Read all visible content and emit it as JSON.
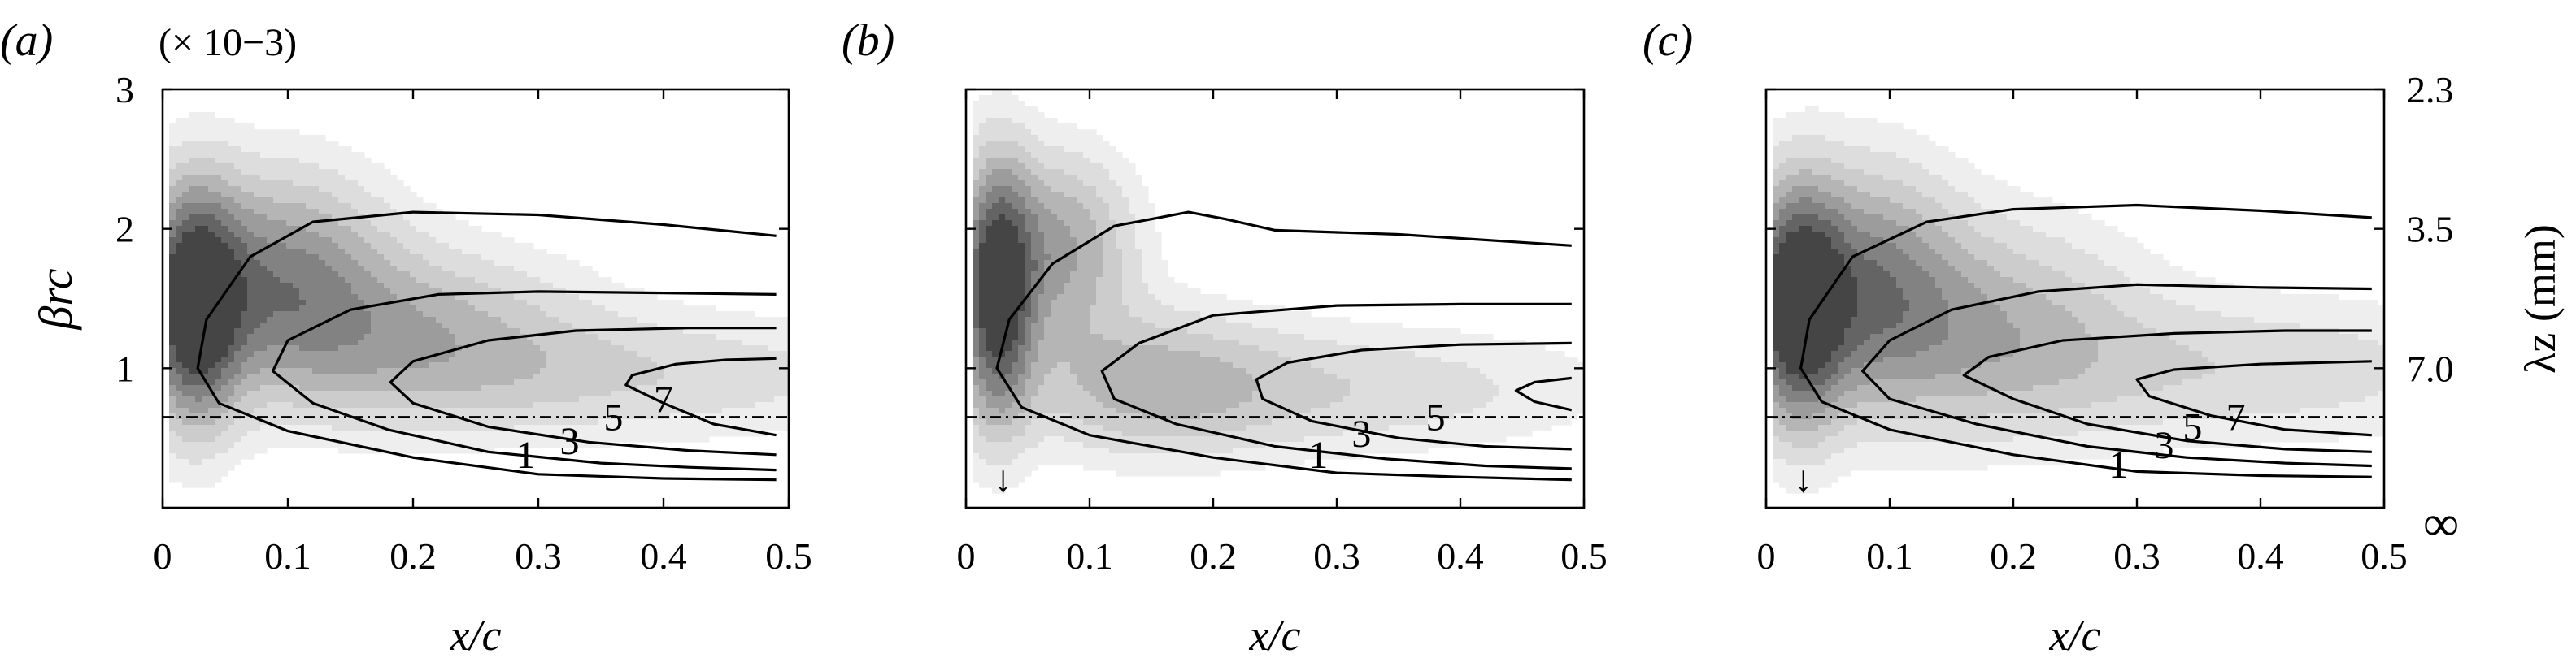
{
  "figure": {
    "scale_note": "(× 10−3)",
    "shared_xlabel": "x/c",
    "shared_ylabel": "βrc",
    "right_axis_label": "λz (mm)"
  },
  "chart_data": [
    {
      "type": "heatmap",
      "panel_label": "(a)",
      "xlabel": "x/c",
      "ylabel": "βrc",
      "xlim": [
        0,
        0.5
      ],
      "ylim": [
        0,
        3
      ],
      "xticks": [
        "0",
        "0.1",
        "0.2",
        "0.3",
        "0.4",
        "0.5"
      ],
      "yticks": [
        "3",
        "2",
        "1"
      ],
      "scale_note": "(× 10−3)",
      "reference_line_y": 0.65,
      "arrow": false,
      "blobs": [
        {
          "x": 0.025,
          "y": 1.45,
          "sx": 0.025,
          "sy": 0.55,
          "amp": 0.95
        },
        {
          "x": 0.09,
          "y": 1.65,
          "sx": 0.06,
          "sy": 0.5,
          "amp": 0.55
        },
        {
          "x": 0.2,
          "y": 1.25,
          "sx": 0.09,
          "sy": 0.4,
          "amp": 0.35
        },
        {
          "x": 0.38,
          "y": 0.95,
          "sx": 0.15,
          "sy": 0.3,
          "amp": 0.2
        }
      ],
      "contours": [
        {
          "level": "1",
          "label_at": [
            0.29,
            0.35
          ],
          "points": [
            [
              0.49,
              0.2
            ],
            [
              0.4,
              0.21
            ],
            [
              0.3,
              0.24
            ],
            [
              0.2,
              0.36
            ],
            [
              0.1,
              0.55
            ],
            [
              0.045,
              0.75
            ],
            [
              0.028,
              1
            ],
            [
              0.035,
              1.35
            ],
            [
              0.07,
              1.8
            ],
            [
              0.12,
              2.05
            ],
            [
              0.2,
              2.12
            ],
            [
              0.3,
              2.1
            ],
            [
              0.4,
              2.03
            ],
            [
              0.49,
              1.95
            ]
          ]
        },
        {
          "level": "3",
          "label_at": [
            0.325,
            0.45
          ],
          "points": [
            [
              0.49,
              0.27
            ],
            [
              0.42,
              0.29
            ],
            [
              0.35,
              0.32
            ],
            [
              0.26,
              0.4
            ],
            [
              0.18,
              0.56
            ],
            [
              0.12,
              0.75
            ],
            [
              0.088,
              0.98
            ],
            [
              0.1,
              1.2
            ],
            [
              0.15,
              1.42
            ],
            [
              0.22,
              1.53
            ],
            [
              0.3,
              1.55
            ],
            [
              0.4,
              1.54
            ],
            [
              0.49,
              1.53
            ]
          ]
        },
        {
          "level": "5",
          "label_at": [
            0.36,
            0.62
          ],
          "points": [
            [
              0.49,
              0.38
            ],
            [
              0.42,
              0.41
            ],
            [
              0.34,
              0.47
            ],
            [
              0.26,
              0.58
            ],
            [
              0.2,
              0.75
            ],
            [
              0.182,
              0.9
            ],
            [
              0.2,
              1.05
            ],
            [
              0.26,
              1.2
            ],
            [
              0.33,
              1.27
            ],
            [
              0.42,
              1.29
            ],
            [
              0.49,
              1.29
            ]
          ]
        },
        {
          "level": "7",
          "label_at": [
            0.4,
            0.75
          ],
          "points": [
            [
              0.49,
              0.52
            ],
            [
              0.44,
              0.6
            ],
            [
              0.4,
              0.75
            ],
            [
              0.37,
              0.88
            ],
            [
              0.375,
              0.95
            ],
            [
              0.41,
              1.03
            ],
            [
              0.45,
              1.06
            ],
            [
              0.49,
              1.07
            ]
          ]
        }
      ]
    },
    {
      "type": "heatmap",
      "panel_label": "(b)",
      "xlabel": "x/c",
      "ylabel": "",
      "xlim": [
        0,
        0.5
      ],
      "ylim": [
        0,
        3
      ],
      "xticks": [
        "0",
        "0.1",
        "0.2",
        "0.3",
        "0.4",
        "0.5"
      ],
      "yticks": [],
      "scale_note": "",
      "reference_line_y": 0.65,
      "arrow": true,
      "arrow_symbol": "↓",
      "arrow_x": 0.03,
      "blobs": [
        {
          "x": 0.025,
          "y": 1.55,
          "sx": 0.02,
          "sy": 0.6,
          "amp": 0.95
        },
        {
          "x": 0.075,
          "y": 1.85,
          "sx": 0.04,
          "sy": 0.45,
          "amp": 0.45
        },
        {
          "x": 0.15,
          "y": 0.9,
          "sx": 0.07,
          "sy": 0.35,
          "amp": 0.3
        },
        {
          "x": 0.3,
          "y": 0.85,
          "sx": 0.14,
          "sy": 0.3,
          "amp": 0.2
        }
      ],
      "contours": [
        {
          "level": "1",
          "label_at": [
            0.285,
            0.35
          ],
          "points": [
            [
              0.49,
              0.2
            ],
            [
              0.4,
              0.22
            ],
            [
              0.3,
              0.25
            ],
            [
              0.2,
              0.36
            ],
            [
              0.1,
              0.52
            ],
            [
              0.045,
              0.72
            ],
            [
              0.025,
              1
            ],
            [
              0.035,
              1.35
            ],
            [
              0.07,
              1.75
            ],
            [
              0.12,
              2.02
            ],
            [
              0.18,
              2.12
            ],
            [
              0.21,
              2.07
            ],
            [
              0.25,
              1.99
            ],
            [
              0.35,
              1.96
            ],
            [
              0.49,
              1.88
            ]
          ]
        },
        {
          "level": "3",
          "label_at": [
            0.32,
            0.5
          ],
          "points": [
            [
              0.49,
              0.28
            ],
            [
              0.42,
              0.3
            ],
            [
              0.34,
              0.35
            ],
            [
              0.25,
              0.44
            ],
            [
              0.17,
              0.6
            ],
            [
              0.12,
              0.78
            ],
            [
              0.11,
              0.98
            ],
            [
              0.14,
              1.18
            ],
            [
              0.2,
              1.38
            ],
            [
              0.3,
              1.45
            ],
            [
              0.4,
              1.46
            ],
            [
              0.49,
              1.46
            ]
          ]
        },
        {
          "level": "5",
          "label_at": [
            0.38,
            0.62
          ],
          "points": [
            [
              0.49,
              0.42
            ],
            [
              0.42,
              0.44
            ],
            [
              0.35,
              0.5
            ],
            [
              0.28,
              0.62
            ],
            [
              0.24,
              0.78
            ],
            [
              0.235,
              0.92
            ],
            [
              0.26,
              1.04
            ],
            [
              0.32,
              1.13
            ],
            [
              0.4,
              1.17
            ],
            [
              0.49,
              1.18
            ]
          ]
        },
        {
          "level": "",
          "label_at": null,
          "points": [
            [
              0.49,
              0.7
            ],
            [
              0.46,
              0.76
            ],
            [
              0.445,
              0.84
            ],
            [
              0.46,
              0.9
            ],
            [
              0.49,
              0.93
            ]
          ]
        }
      ]
    },
    {
      "type": "heatmap",
      "panel_label": "(c)",
      "xlabel": "x/c",
      "ylabel": "",
      "xlim": [
        0,
        0.5
      ],
      "ylim": [
        0,
        3
      ],
      "xticks": [
        "0",
        "0.1",
        "0.2",
        "0.3",
        "0.4",
        "0.5"
      ],
      "yticks": [],
      "scale_note": "",
      "reference_line_y": 0.65,
      "arrow": true,
      "arrow_symbol": "↓",
      "arrow_x": 0.03,
      "blobs": [
        {
          "x": 0.025,
          "y": 1.45,
          "sx": 0.025,
          "sy": 0.55,
          "amp": 0.95
        },
        {
          "x": 0.08,
          "y": 1.6,
          "sx": 0.05,
          "sy": 0.55,
          "amp": 0.55
        },
        {
          "x": 0.18,
          "y": 1.3,
          "sx": 0.08,
          "sy": 0.5,
          "amp": 0.35
        },
        {
          "x": 0.38,
          "y": 1.0,
          "sx": 0.15,
          "sy": 0.35,
          "amp": 0.2
        }
      ],
      "contours": [
        {
          "level": "1",
          "label_at": [
            0.285,
            0.28
          ],
          "points": [
            [
              0.49,
              0.22
            ],
            [
              0.4,
              0.23
            ],
            [
              0.3,
              0.26
            ],
            [
              0.2,
              0.38
            ],
            [
              0.1,
              0.56
            ],
            [
              0.045,
              0.76
            ],
            [
              0.028,
              1
            ],
            [
              0.035,
              1.35
            ],
            [
              0.07,
              1.8
            ],
            [
              0.13,
              2.05
            ],
            [
              0.2,
              2.14
            ],
            [
              0.3,
              2.17
            ],
            [
              0.4,
              2.13
            ],
            [
              0.49,
              2.08
            ]
          ]
        },
        {
          "level": "3",
          "label_at": [
            0.322,
            0.42
          ],
          "points": [
            [
              0.49,
              0.3
            ],
            [
              0.42,
              0.32
            ],
            [
              0.34,
              0.36
            ],
            [
              0.26,
              0.44
            ],
            [
              0.17,
              0.6
            ],
            [
              0.1,
              0.78
            ],
            [
              0.078,
              0.98
            ],
            [
              0.1,
              1.2
            ],
            [
              0.15,
              1.42
            ],
            [
              0.22,
              1.55
            ],
            [
              0.3,
              1.6
            ],
            [
              0.4,
              1.58
            ],
            [
              0.49,
              1.57
            ]
          ]
        },
        {
          "level": "5",
          "label_at": [
            0.345,
            0.55
          ],
          "points": [
            [
              0.49,
              0.4
            ],
            [
              0.42,
              0.42
            ],
            [
              0.34,
              0.48
            ],
            [
              0.26,
              0.6
            ],
            [
              0.2,
              0.78
            ],
            [
              0.16,
              0.95
            ],
            [
              0.18,
              1.08
            ],
            [
              0.24,
              1.2
            ],
            [
              0.33,
              1.25
            ],
            [
              0.42,
              1.27
            ],
            [
              0.49,
              1.27
            ]
          ]
        },
        {
          "level": "7",
          "label_at": [
            0.38,
            0.62
          ],
          "points": [
            [
              0.49,
              0.52
            ],
            [
              0.42,
              0.56
            ],
            [
              0.36,
              0.66
            ],
            [
              0.31,
              0.8
            ],
            [
              0.3,
              0.92
            ],
            [
              0.33,
              0.99
            ],
            [
              0.4,
              1.03
            ],
            [
              0.49,
              1.05
            ]
          ]
        }
      ]
    }
  ],
  "right_axis": {
    "label": "λz (mm)",
    "ticks": [
      {
        "value": 2.3,
        "text": "2.3"
      },
      {
        "value": 3.5,
        "text": "3.5"
      },
      {
        "value": 7.0,
        "text": "7.0"
      },
      {
        "value": "∞",
        "text": "∞"
      }
    ]
  }
}
